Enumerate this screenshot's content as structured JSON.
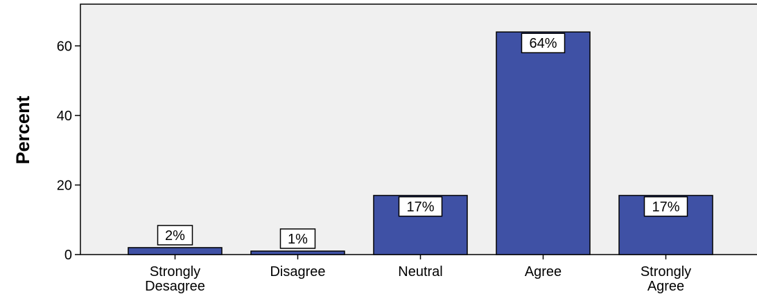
{
  "chart_data": {
    "type": "bar",
    "categories": [
      [
        "Strongly",
        "Desagree"
      ],
      [
        "Disagree"
      ],
      [
        "Neutral"
      ],
      [
        "Agree"
      ],
      [
        "Strongly",
        "Agree"
      ]
    ],
    "values": [
      2,
      1,
      17,
      64,
      17
    ],
    "data_labels": [
      "2%",
      "1%",
      "17%",
      "64%",
      "17%"
    ],
    "title": "",
    "xlabel": "",
    "ylabel": "Percent",
    "ylim": [
      0,
      72
    ],
    "yticks": [
      0,
      20,
      40,
      60
    ],
    "grid": false,
    "colors": {
      "bar": "#3F51A5",
      "plot_background": "#F0F0F0",
      "label_box": "#FFFFFF"
    }
  }
}
